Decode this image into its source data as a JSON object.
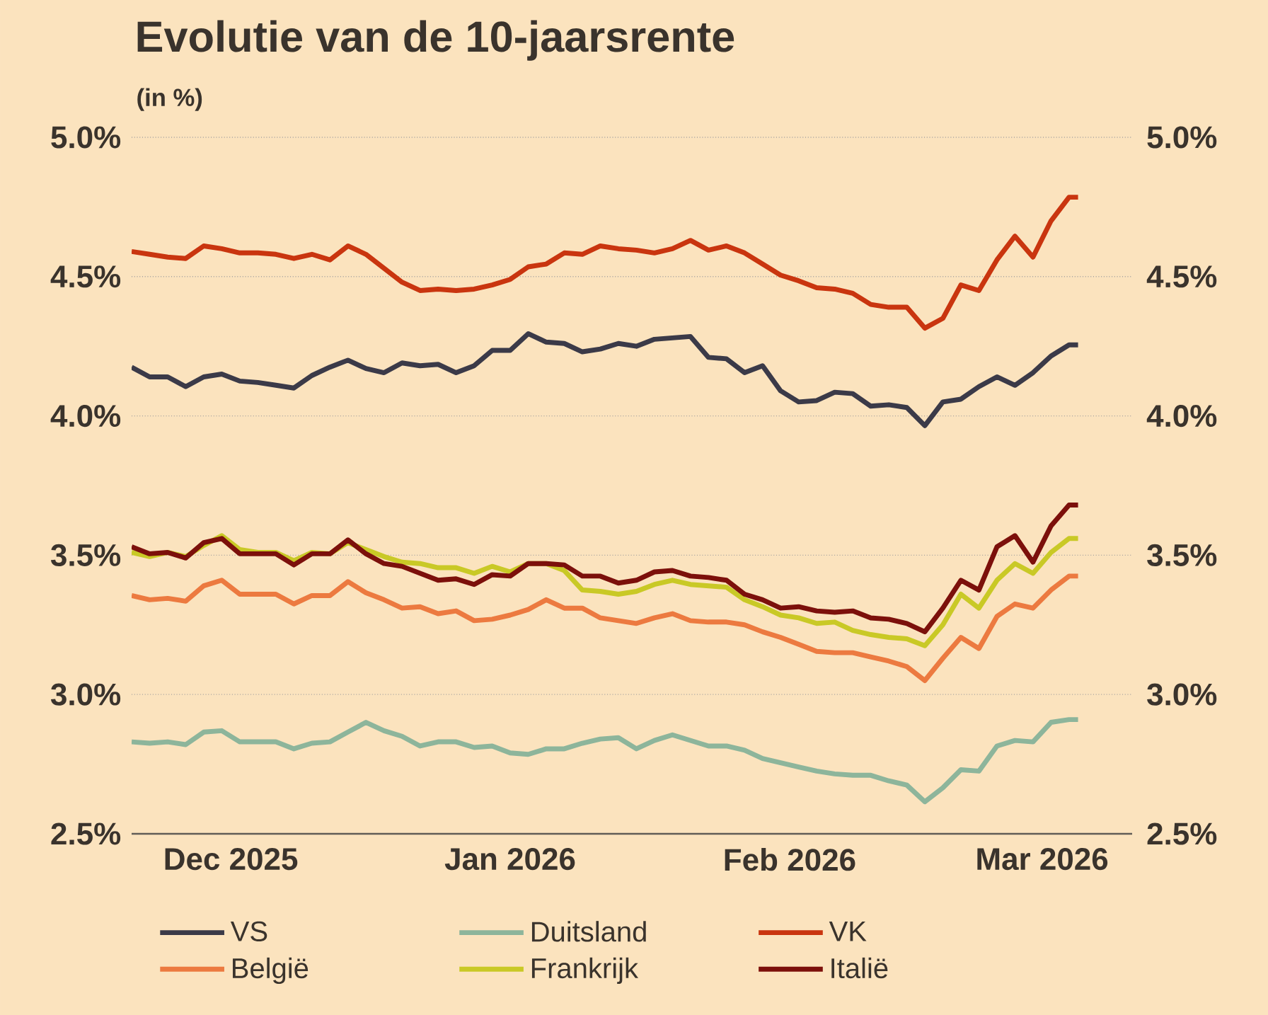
{
  "chart_data": {
    "type": "line",
    "title": "Evolutie van de 10-jaarsrente",
    "subtitle": "(in %)",
    "x": [
      "2025-11-20",
      "2025-11-22",
      "2025-11-24",
      "2025-11-26",
      "2025-11-28",
      "2025-11-30",
      "2025-12-02",
      "2025-12-04",
      "2025-12-06",
      "2025-12-08",
      "2025-12-10",
      "2025-12-12",
      "2025-12-14",
      "2025-12-16",
      "2025-12-18",
      "2025-12-20",
      "2025-12-22",
      "2025-12-24",
      "2025-12-26",
      "2025-12-28",
      "2025-12-30",
      "2026-01-01",
      "2026-01-03",
      "2026-01-05",
      "2026-01-07",
      "2026-01-09",
      "2026-01-11",
      "2026-01-13",
      "2026-01-15",
      "2026-01-17",
      "2026-01-19",
      "2026-01-21",
      "2026-01-23",
      "2026-01-25",
      "2026-01-27",
      "2026-01-29",
      "2026-01-31",
      "2026-02-02",
      "2026-02-04",
      "2026-02-06",
      "2026-02-08",
      "2026-02-10",
      "2026-02-12",
      "2026-02-14",
      "2026-02-16",
      "2026-02-18",
      "2026-02-20",
      "2026-02-22",
      "2026-02-24",
      "2026-02-26",
      "2026-02-28",
      "2026-03-02",
      "2026-03-04",
      "2026-03-05"
    ],
    "series": [
      {
        "name": "VS",
        "color": "#3b3a48",
        "values": [
          4.175,
          4.14,
          4.14,
          4.105,
          4.14,
          4.15,
          4.125,
          4.12,
          4.11,
          4.1,
          4.145,
          4.175,
          4.2,
          4.17,
          4.155,
          4.19,
          4.18,
          4.185,
          4.155,
          4.18,
          4.235,
          4.235,
          4.295,
          4.265,
          4.26,
          4.23,
          4.24,
          4.26,
          4.25,
          4.275,
          4.28,
          4.285,
          4.21,
          4.205,
          4.155,
          4.18,
          4.09,
          4.05,
          4.055,
          4.085,
          4.08,
          4.035,
          4.04,
          4.03,
          3.965,
          4.05,
          4.06,
          4.105,
          4.14,
          4.11,
          4.155,
          4.215,
          4.255,
          4.255
        ]
      },
      {
        "name": "Duitsland",
        "color": "#8db59b",
        "values": [
          2.83,
          2.825,
          2.83,
          2.82,
          2.865,
          2.87,
          2.83,
          2.83,
          2.83,
          2.805,
          2.825,
          2.83,
          2.865,
          2.9,
          2.87,
          2.85,
          2.815,
          2.83,
          2.83,
          2.81,
          2.815,
          2.79,
          2.785,
          2.805,
          2.805,
          2.825,
          2.84,
          2.845,
          2.805,
          2.835,
          2.855,
          2.835,
          2.815,
          2.815,
          2.8,
          2.77,
          2.755,
          2.74,
          2.725,
          2.715,
          2.71,
          2.71,
          2.69,
          2.675,
          2.615,
          2.665,
          2.73,
          2.725,
          2.815,
          2.835,
          2.83,
          2.9,
          2.91,
          2.91
        ]
      },
      {
        "name": "VK",
        "color": "#c9350f",
        "values": [
          4.59,
          4.58,
          4.57,
          4.565,
          4.61,
          4.6,
          4.585,
          4.585,
          4.58,
          4.565,
          4.58,
          4.56,
          4.61,
          4.58,
          4.53,
          4.48,
          4.45,
          4.455,
          4.45,
          4.455,
          4.47,
          4.49,
          4.535,
          4.545,
          4.585,
          4.58,
          4.61,
          4.6,
          4.595,
          4.585,
          4.6,
          4.63,
          4.595,
          4.61,
          4.585,
          4.545,
          4.505,
          4.485,
          4.46,
          4.455,
          4.44,
          4.4,
          4.39,
          4.39,
          4.315,
          4.35,
          4.47,
          4.45,
          4.56,
          4.645,
          4.57,
          4.7,
          4.785,
          4.785
        ]
      },
      {
        "name": "België",
        "color": "#ec7a40",
        "values": [
          3.355,
          3.34,
          3.345,
          3.335,
          3.39,
          3.41,
          3.36,
          3.36,
          3.36,
          3.325,
          3.355,
          3.355,
          3.405,
          3.365,
          3.34,
          3.31,
          3.315,
          3.29,
          3.3,
          3.265,
          3.27,
          3.285,
          3.305,
          3.34,
          3.31,
          3.31,
          3.275,
          3.265,
          3.255,
          3.275,
          3.29,
          3.265,
          3.26,
          3.26,
          3.25,
          3.225,
          3.205,
          3.18,
          3.155,
          3.15,
          3.15,
          3.135,
          3.12,
          3.1,
          3.05,
          3.13,
          3.205,
          3.165,
          3.28,
          3.325,
          3.31,
          3.375,
          3.425,
          3.425
        ]
      },
      {
        "name": "Frankrijk",
        "color": "#c9c926",
        "values": [
          3.51,
          3.495,
          3.51,
          3.495,
          3.535,
          3.57,
          3.52,
          3.51,
          3.51,
          3.48,
          3.51,
          3.505,
          3.545,
          3.52,
          3.495,
          3.475,
          3.47,
          3.455,
          3.455,
          3.435,
          3.46,
          3.44,
          3.47,
          3.47,
          3.445,
          3.375,
          3.37,
          3.36,
          3.37,
          3.395,
          3.41,
          3.395,
          3.39,
          3.385,
          3.34,
          3.315,
          3.285,
          3.275,
          3.255,
          3.26,
          3.23,
          3.215,
          3.205,
          3.2,
          3.175,
          3.25,
          3.36,
          3.31,
          3.41,
          3.47,
          3.435,
          3.51,
          3.56,
          3.56
        ]
      },
      {
        "name": "Italië",
        "color": "#7c100b",
        "values": [
          3.53,
          3.505,
          3.51,
          3.49,
          3.545,
          3.56,
          3.505,
          3.505,
          3.505,
          3.465,
          3.505,
          3.505,
          3.555,
          3.505,
          3.47,
          3.46,
          3.435,
          3.41,
          3.415,
          3.395,
          3.43,
          3.425,
          3.47,
          3.47,
          3.465,
          3.425,
          3.425,
          3.4,
          3.41,
          3.44,
          3.445,
          3.425,
          3.42,
          3.41,
          3.36,
          3.34,
          3.31,
          3.315,
          3.3,
          3.295,
          3.3,
          3.275,
          3.27,
          3.255,
          3.225,
          3.31,
          3.41,
          3.375,
          3.53,
          3.57,
          3.475,
          3.605,
          3.68,
          3.68
        ]
      }
    ],
    "xlim": [
      "2025-11-20",
      "2026-03-11"
    ],
    "xticks": [
      {
        "value": "2025-12-01",
        "label": "Dec 2025"
      },
      {
        "value": "2026-01-01",
        "label": "Jan 2026"
      },
      {
        "value": "2026-02-01",
        "label": "Feb 2026"
      },
      {
        "value": "2026-03-01",
        "label": "Mar 2026"
      }
    ],
    "ylim": [
      2.5,
      5.0
    ],
    "yticks": [
      {
        "value": 2.5,
        "label": "2.5%"
      },
      {
        "value": 3.0,
        "label": "3.0%"
      },
      {
        "value": 3.5,
        "label": "3.5%"
      },
      {
        "value": 4.0,
        "label": "4.0%"
      },
      {
        "value": 4.5,
        "label": "4.5%"
      },
      {
        "value": 5.0,
        "label": "5.0%"
      }
    ],
    "y2lim": [
      2.5,
      5.0
    ],
    "y2ticks": [
      {
        "value": 2.5,
        "label": "2.5%"
      },
      {
        "value": 3.0,
        "label": "3.0%"
      },
      {
        "value": 3.5,
        "label": "3.5%"
      },
      {
        "value": 4.0,
        "label": "4.0%"
      },
      {
        "value": 4.5,
        "label": "4.5%"
      },
      {
        "value": 5.0,
        "label": "5.0%"
      }
    ],
    "grid": "y",
    "legend": "bottom",
    "marker": "none",
    "line_style": "solid"
  }
}
